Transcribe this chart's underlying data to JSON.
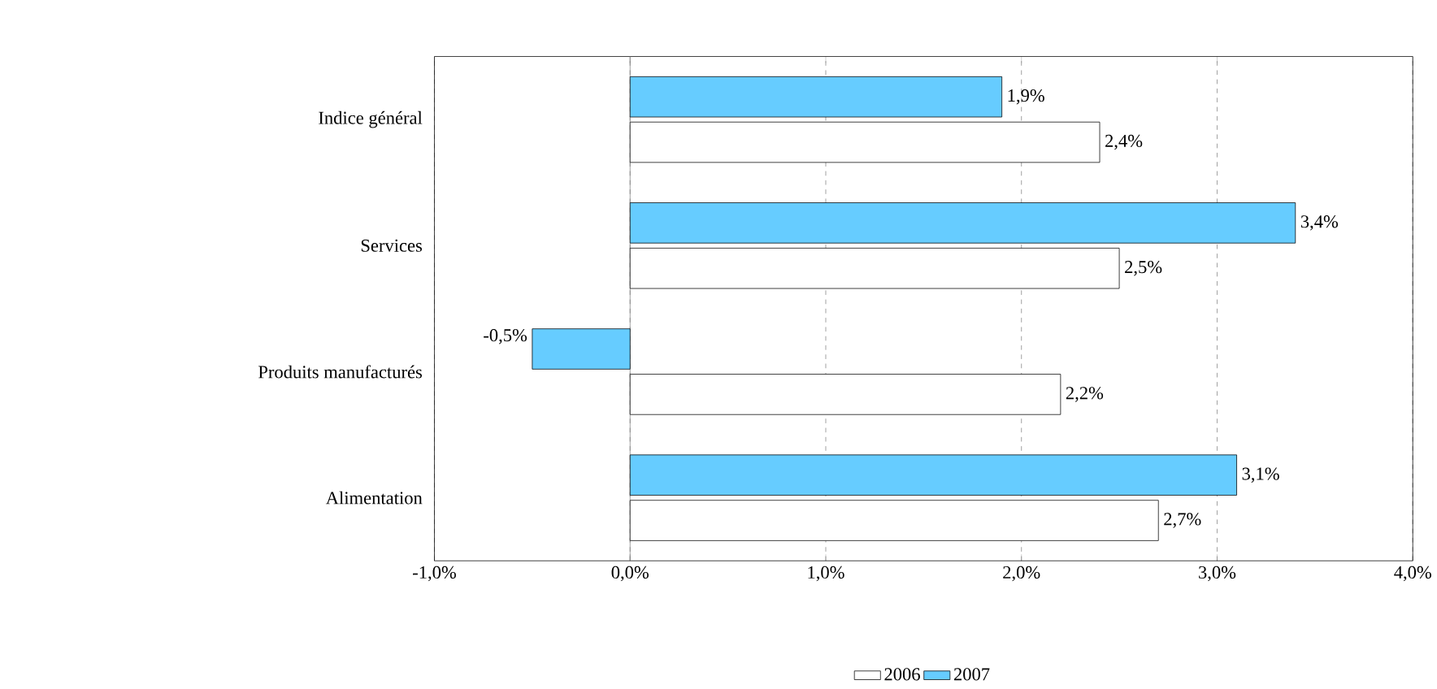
{
  "chart_data": {
    "type": "bar",
    "orientation": "horizontal",
    "categories": [
      "Indice général",
      "Services",
      "Produits manufacturés",
      "Alimentation"
    ],
    "series": [
      {
        "name": "2006",
        "color": "#ffffff",
        "values": [
          2.4,
          2.5,
          2.2,
          2.7
        ],
        "value_labels": [
          "2,4%",
          "2,5%",
          "2,2%",
          "2,7%"
        ]
      },
      {
        "name": "2007",
        "color": "#66ccff",
        "values": [
          1.9,
          3.4,
          -0.5,
          3.1
        ],
        "value_labels": [
          "1,9%",
          "3,4%",
          "-0,5%",
          "3,1%"
        ]
      }
    ],
    "xlim": [
      -1,
      4
    ],
    "xticks": [
      {
        "value": -1,
        "label": "-1,0%"
      },
      {
        "value": 0,
        "label": "0,0%"
      },
      {
        "value": 1,
        "label": "1,0%"
      },
      {
        "value": 2,
        "label": "2,0%"
      },
      {
        "value": 3,
        "label": "3,0%"
      },
      {
        "value": 4,
        "label": "4,0%"
      }
    ],
    "grid": "x",
    "legend": "bottom"
  }
}
